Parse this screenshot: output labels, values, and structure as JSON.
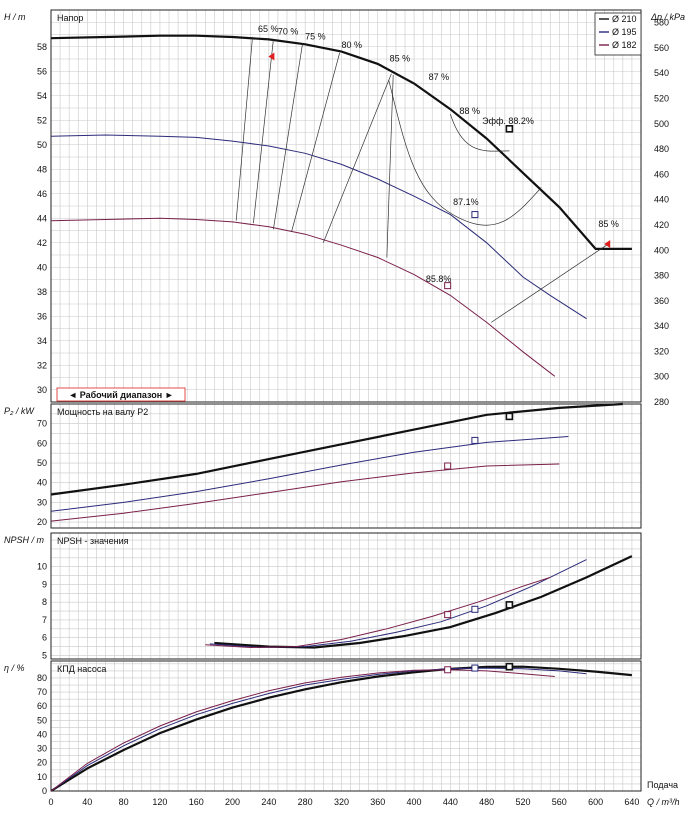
{
  "colors": {
    "d210": "#111111",
    "d195": "#2b2b7a",
    "d182": "#7a1f4a",
    "marker": "#e02020",
    "grid": "#c8c8c8"
  },
  "chart_data": [
    {
      "type": "line",
      "title": "Напор",
      "ylabel": "H / m",
      "ylabel2": "Δp / kPa",
      "xlim": [
        0,
        650
      ],
      "ylim": [
        29,
        61
      ],
      "ylim2": [
        280,
        590
      ],
      "legend": [
        "Ø 210",
        "Ø 195",
        "Ø 182"
      ],
      "legend_position": "top-right",
      "operating_range_label": "◄ Рабочий диапазон ►",
      "y_ticks": [
        30,
        32,
        34,
        36,
        38,
        40,
        42,
        44,
        46,
        48,
        50,
        52,
        54,
        56,
        58
      ],
      "y2_ticks": [
        280,
        300,
        320,
        340,
        360,
        380,
        400,
        420,
        440,
        460,
        480,
        500,
        520,
        540,
        560,
        580
      ],
      "series": [
        {
          "name": "Ø 210",
          "x": [
            0,
            60,
            120,
            160,
            200,
            240,
            280,
            320,
            360,
            400,
            440,
            480,
            520,
            560,
            600,
            640
          ],
          "y": [
            58.7,
            58.8,
            58.9,
            58.9,
            58.8,
            58.6,
            58.2,
            57.6,
            56.6,
            55.0,
            52.9,
            50.5,
            47.7,
            44.9,
            41.5,
            41.5
          ]
        },
        {
          "name": "Ø 195",
          "x": [
            0,
            60,
            120,
            160,
            200,
            240,
            280,
            320,
            360,
            400,
            440,
            480,
            520,
            550,
            590
          ],
          "y": [
            50.7,
            50.8,
            50.7,
            50.6,
            50.3,
            49.9,
            49.3,
            48.4,
            47.2,
            45.8,
            44.3,
            42.0,
            39.2,
            37.7,
            35.8
          ]
        },
        {
          "name": "Ø 182",
          "x": [
            0,
            60,
            120,
            160,
            200,
            240,
            280,
            320,
            360,
            400,
            440,
            480,
            520,
            555
          ],
          "y": [
            43.8,
            43.9,
            44.0,
            43.9,
            43.7,
            43.3,
            42.7,
            41.8,
            40.8,
            39.4,
            37.7,
            35.5,
            33.1,
            31.1
          ]
        }
      ],
      "efficiency_labels": [
        "65 %",
        "70 %",
        "75 %",
        "80 %",
        "85 %",
        "87 %",
        "88 %",
        "Эфф.  88.2%",
        "85 %"
      ],
      "point_labels": [
        "87.1%",
        "85.8%"
      ],
      "iso_efficiency_lines": [
        {
          "label": "65 %",
          "x": [
            204,
            222
          ],
          "y": [
            43.8,
            58.8
          ]
        },
        {
          "label": "70 %",
          "x": [
            223,
            245
          ],
          "y": [
            43.6,
            58.6
          ]
        },
        {
          "label": "75 %",
          "x": [
            245,
            277
          ],
          "y": [
            43.1,
            58.2
          ]
        },
        {
          "label": "80 %",
          "x": [
            265,
            318
          ],
          "y": [
            42.9,
            57.5
          ]
        },
        {
          "label": "85 %",
          "x": [
            300,
            375
          ],
          "y": [
            42.0,
            55.8
          ]
        },
        {
          "label": "85 %",
          "x": [
            370,
            377
          ],
          "y": [
            40.8,
            55.7
          ]
        }
      ]
    },
    {
      "type": "line",
      "title": "Мощность на валу P2",
      "ylabel": "P₂ / kW",
      "xlim": [
        0,
        650
      ],
      "ylim": [
        17,
        80
      ],
      "y_ticks": [
        20,
        30,
        40,
        50,
        60,
        70
      ],
      "series": [
        {
          "name": "Ø 210",
          "x": [
            0,
            80,
            160,
            240,
            320,
            400,
            480,
            560,
            630
          ],
          "y": [
            34,
            39,
            44.5,
            52,
            59.5,
            67,
            74.5,
            78,
            80
          ]
        },
        {
          "name": "Ø 195",
          "x": [
            0,
            80,
            160,
            240,
            320,
            400,
            480,
            570
          ],
          "y": [
            25.5,
            30,
            35.5,
            42,
            49,
            55.5,
            60.5,
            63.5
          ]
        },
        {
          "name": "Ø 182",
          "x": [
            0,
            80,
            160,
            240,
            320,
            400,
            480,
            560
          ],
          "y": [
            20.5,
            24.5,
            29.5,
            35,
            40.5,
            45,
            48.5,
            49.5
          ]
        }
      ]
    },
    {
      "type": "line",
      "title": "NPSH - значения",
      "ylabel": "NPSH / m",
      "xlim": [
        0,
        650
      ],
      "ylim": [
        4.8,
        11.9
      ],
      "y_ticks": [
        5,
        6,
        7,
        8,
        9,
        10
      ],
      "series": [
        {
          "name": "Ø 210",
          "x": [
            180,
            240,
            290,
            340,
            390,
            440,
            490,
            540,
            590,
            640
          ],
          "y": [
            5.7,
            5.5,
            5.45,
            5.7,
            6.1,
            6.6,
            7.4,
            8.3,
            9.4,
            10.6
          ]
        },
        {
          "name": "Ø 195",
          "x": [
            175,
            230,
            280,
            330,
            380,
            430,
            480,
            530,
            590
          ],
          "y": [
            5.65,
            5.45,
            5.5,
            5.8,
            6.3,
            6.9,
            7.8,
            8.9,
            10.4
          ]
        },
        {
          "name": "Ø 182",
          "x": [
            170,
            220,
            270,
            320,
            370,
            420,
            470,
            520,
            550
          ],
          "y": [
            5.6,
            5.45,
            5.5,
            5.9,
            6.5,
            7.2,
            8.0,
            8.9,
            9.4
          ]
        }
      ]
    },
    {
      "type": "line",
      "title": "КПД насоса",
      "ylabel": "η / %",
      "xlabel": "Q / m³/h",
      "xlabel_right": "Подача",
      "xlim": [
        0,
        650
      ],
      "ylim": [
        0,
        92
      ],
      "y_ticks": [
        0,
        10,
        20,
        30,
        40,
        50,
        60,
        70,
        80
      ],
      "x_ticks": [
        0,
        40,
        80,
        120,
        160,
        200,
        240,
        280,
        320,
        360,
        400,
        440,
        480,
        520,
        560,
        600,
        640
      ],
      "series": [
        {
          "name": "Ø 210",
          "x": [
            0,
            40,
            80,
            120,
            160,
            200,
            240,
            280,
            320,
            360,
            400,
            440,
            480,
            520,
            560,
            600,
            640
          ],
          "y": [
            0,
            16,
            29,
            41,
            50.5,
            59,
            66,
            72,
            77,
            81,
            84,
            86.5,
            87.8,
            88.0,
            86.5,
            84.5,
            82
          ]
        },
        {
          "name": "Ø 195",
          "x": [
            0,
            40,
            80,
            120,
            160,
            200,
            240,
            280,
            320,
            360,
            400,
            440,
            480,
            520,
            560,
            590
          ],
          "y": [
            0,
            18,
            32,
            44,
            54,
            62,
            69,
            75,
            79,
            82.5,
            85,
            86.6,
            87.0,
            86.5,
            85,
            83
          ]
        },
        {
          "name": "Ø 182",
          "x": [
            0,
            40,
            80,
            120,
            160,
            200,
            240,
            280,
            320,
            360,
            400,
            440,
            480,
            520,
            555
          ],
          "y": [
            0,
            19.5,
            34,
            46,
            56,
            64,
            71,
            76.5,
            80.5,
            83.5,
            85.5,
            85.8,
            85,
            83,
            81
          ]
        }
      ]
    }
  ]
}
